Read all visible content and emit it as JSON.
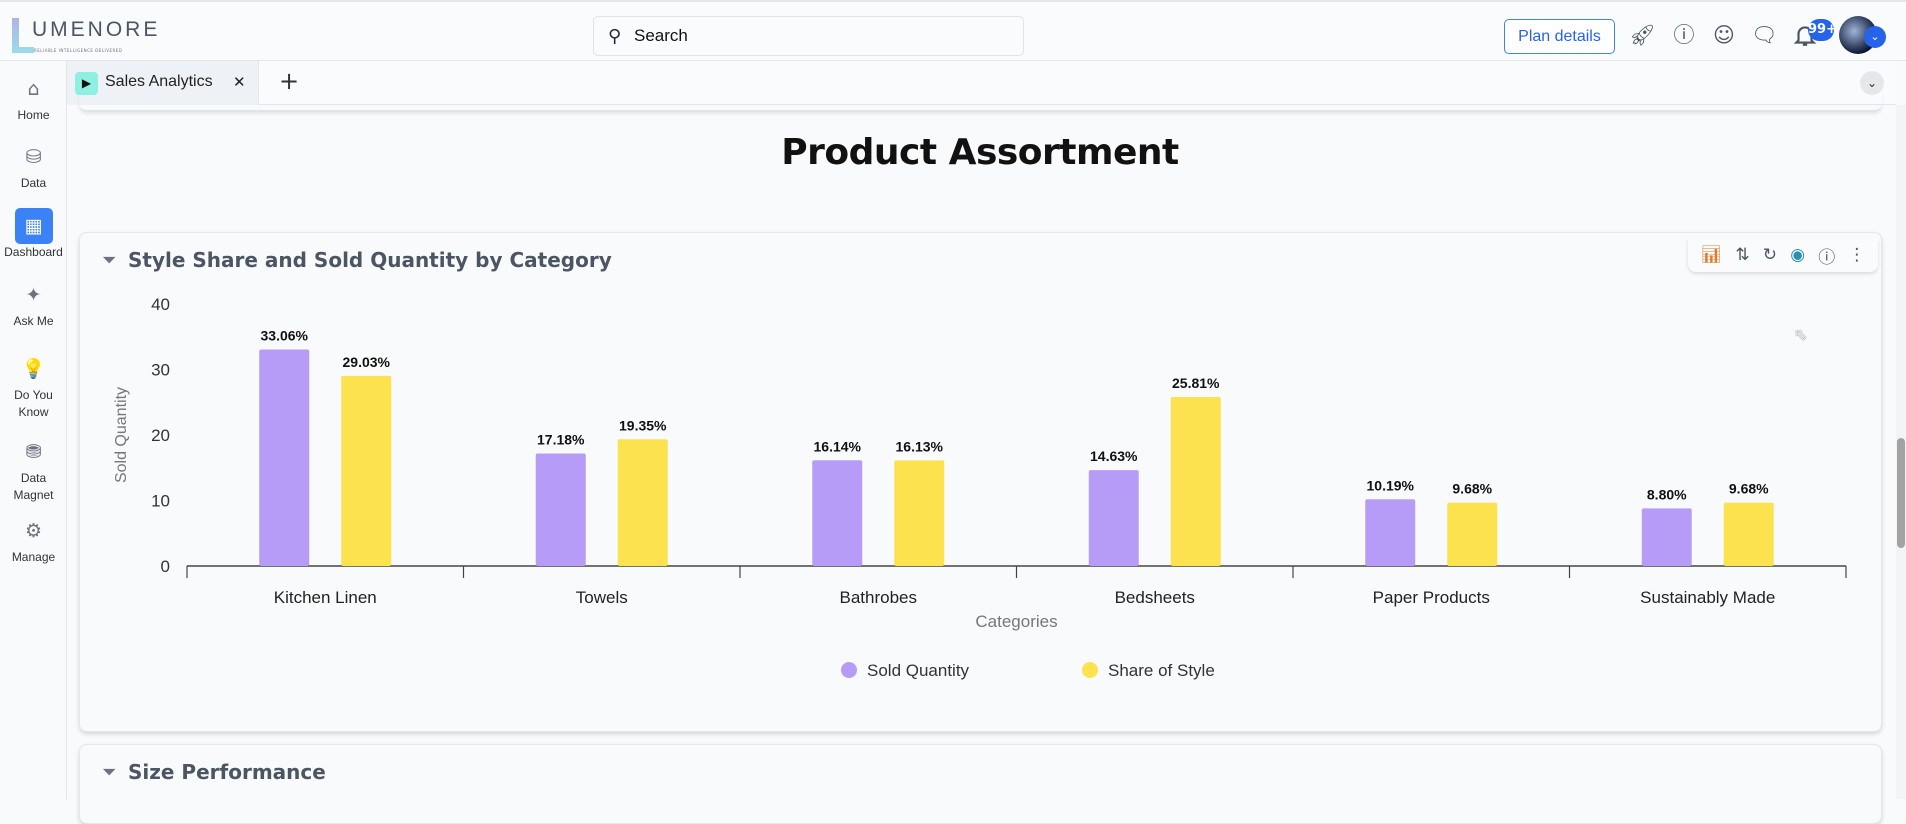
{
  "header": {
    "logo_text": "UMENORE",
    "logo_tagline": "RELIABLE INTELLIGENCE DELIVERED",
    "search_placeholder": "Search",
    "plan_button": "Plan details",
    "notification_count": "99+",
    "icons": [
      "rocket-icon",
      "help-icon",
      "support-bot-icon",
      "feedback-icon",
      "bell-icon"
    ]
  },
  "sidebar": {
    "items": [
      {
        "label": "Home",
        "icon": "⌂"
      },
      {
        "label": "Data",
        "icon": "⛁"
      },
      {
        "label": "Dashboard",
        "icon": "▦",
        "active": true
      },
      {
        "label": "Ask Me",
        "icon": "✦"
      },
      {
        "label": "Do You Know",
        "icon": "💡"
      },
      {
        "label": "Data Magnet",
        "icon": "⛃"
      },
      {
        "label": "Manage",
        "icon": "⚙"
      }
    ]
  },
  "tabs": [
    {
      "label": "Sales Analytics"
    }
  ],
  "page": {
    "title": "Product Assortment"
  },
  "cards": [
    {
      "title": "Style Share and Sold Quantity by Category"
    },
    {
      "title": "Size Performance"
    }
  ],
  "colors": {
    "sold_quantity": "#b79cf7",
    "share_of_style": "#fde24f",
    "accent": "#3b82f6"
  },
  "chart_data": {
    "type": "bar",
    "title": "Style Share and Sold Quantity by Category",
    "xlabel": "Categories",
    "ylabel": "Sold Quantity",
    "ylim": [
      0,
      40
    ],
    "yticks": [
      0,
      10,
      20,
      30,
      40
    ],
    "grid": false,
    "legend": "bottom",
    "categories": [
      "Kitchen Linen",
      "Towels",
      "Bathrobes",
      "Bedsheets",
      "Paper Products",
      "Sustainably Made"
    ],
    "series": [
      {
        "name": "Sold Quantity",
        "color": "#b79cf7",
        "values": [
          33.06,
          17.18,
          16.14,
          14.63,
          10.19,
          8.8
        ],
        "labels": [
          "33.06%",
          "17.18%",
          "16.14%",
          "14.63%",
          "10.19%",
          "8.80%"
        ]
      },
      {
        "name": "Share of Style",
        "color": "#fde24f",
        "values": [
          29.03,
          19.35,
          16.13,
          25.81,
          9.68,
          9.68
        ],
        "labels": [
          "29.03%",
          "19.35%",
          "16.13%",
          "25.81%",
          "9.68%",
          "9.68%"
        ]
      }
    ]
  }
}
